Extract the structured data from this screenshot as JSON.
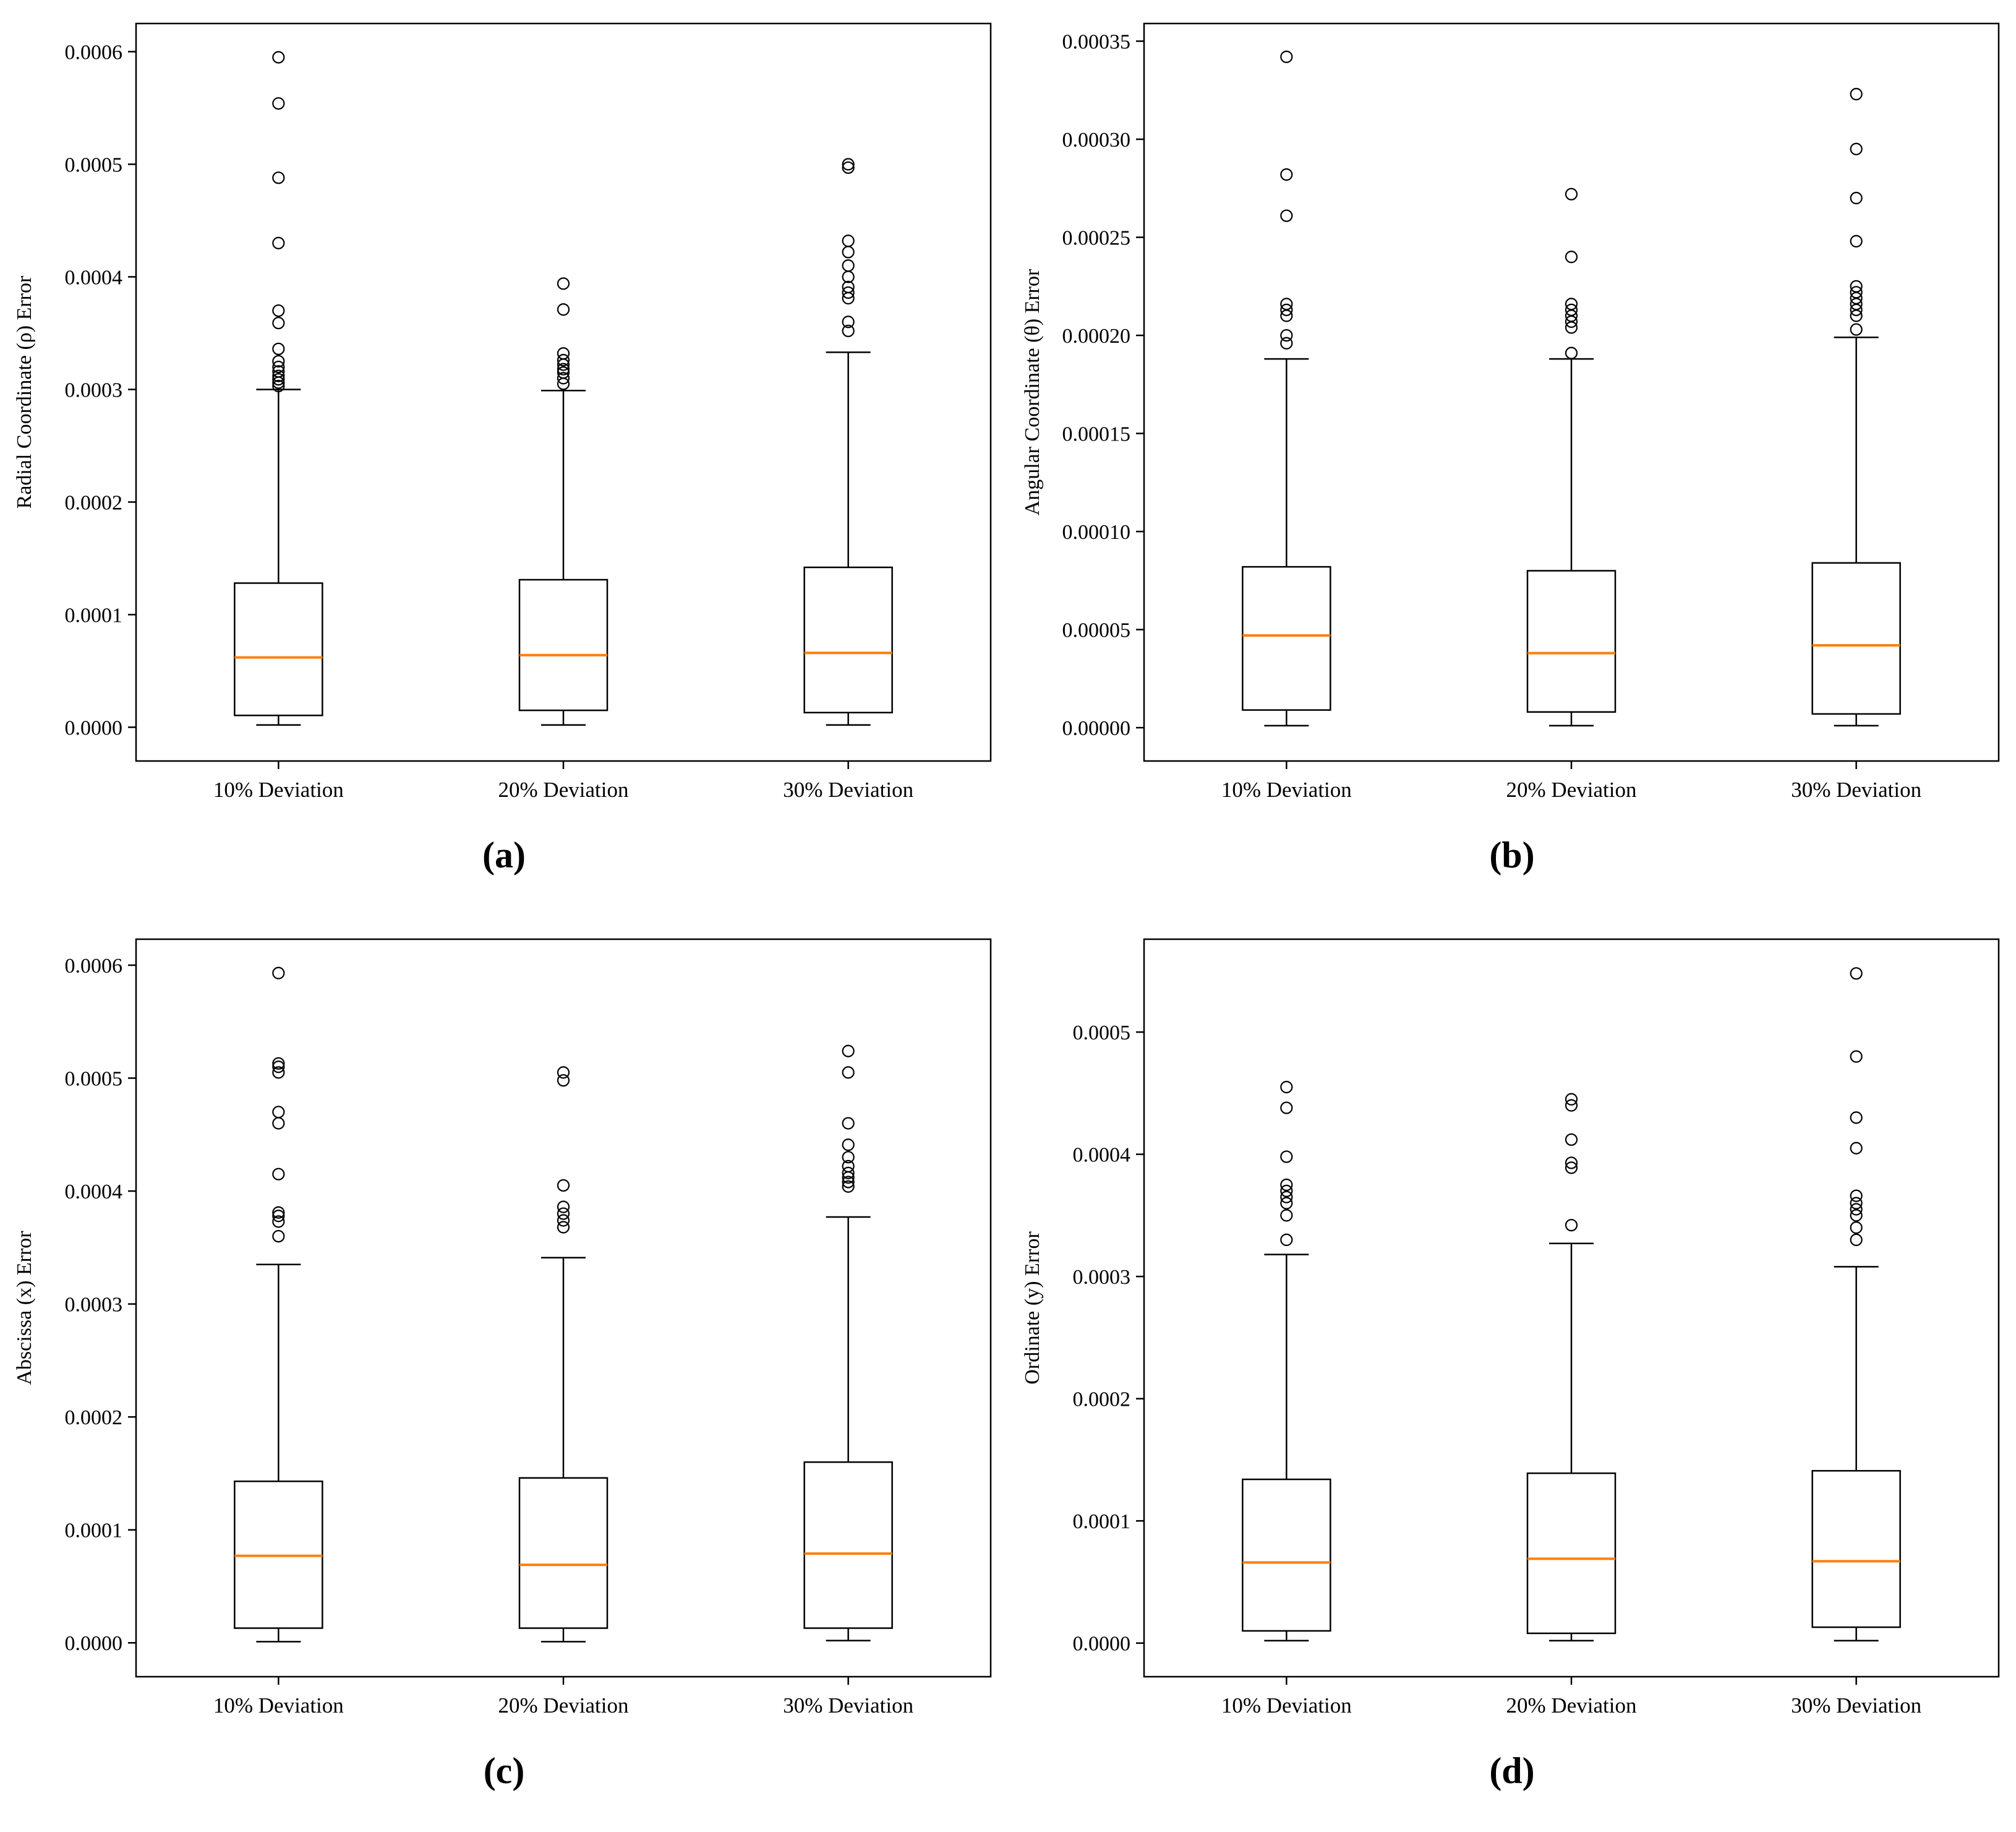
{
  "figure": {
    "background": "#ffffff"
  },
  "colors": {
    "line": "#000000",
    "median": "#ff7f0e",
    "box_fill": "#ffffff",
    "background": "#ffffff"
  },
  "chart_data": [
    {
      "type": "boxplot",
      "panel_label": "(a)",
      "ylabel": "Radial Coordinate (ρ) Error",
      "categories": [
        "10% Deviation",
        "20% Deviation",
        "30% Deviation"
      ],
      "ylim": [
        -3e-05,
        0.000625
      ],
      "yticks": [
        {
          "value": 0.0,
          "label": "0.0000"
        },
        {
          "value": 0.0001,
          "label": "0.0001"
        },
        {
          "value": 0.0002,
          "label": "0.0002"
        },
        {
          "value": 0.0003,
          "label": "0.0003"
        },
        {
          "value": 0.0004,
          "label": "0.0004"
        },
        {
          "value": 0.0005,
          "label": "0.0005"
        },
        {
          "value": 0.0006,
          "label": "0.0006"
        }
      ],
      "boxes": [
        {
          "whislo": 2e-06,
          "q1": 1.05e-05,
          "median": 6.2e-05,
          "q3": 0.000128,
          "whishi": 0.0003,
          "outliers": [
            0.000303,
            0.000306,
            0.000309,
            0.000312,
            0.000316,
            0.00032,
            0.000325,
            0.000336,
            0.000359,
            0.00037,
            0.00043,
            0.000488,
            0.000554,
            0.000595
          ]
        },
        {
          "whislo": 2e-06,
          "q1": 1.5e-05,
          "median": 6.4e-05,
          "q3": 0.000131,
          "whishi": 0.000299,
          "outliers": [
            0.000305,
            0.00031,
            0.000315,
            0.000318,
            0.000322,
            0.000326,
            0.000332,
            0.000371,
            0.000394
          ]
        },
        {
          "whislo": 2e-06,
          "q1": 1.3e-05,
          "median": 6.6e-05,
          "q3": 0.000142,
          "whishi": 0.000333,
          "outliers": [
            0.000352,
            0.00036,
            0.000381,
            0.000386,
            0.000391,
            0.0004,
            0.00041,
            0.000422,
            0.000432,
            0.000497,
            0.0005
          ]
        }
      ]
    },
    {
      "type": "boxplot",
      "panel_label": "(b)",
      "ylabel": "Angular Coordinate (θ) Error",
      "categories": [
        "10% Deviation",
        "20% Deviation",
        "30% Deviation"
      ],
      "ylim": [
        -1.7e-05,
        0.000359
      ],
      "yticks": [
        {
          "value": 0.0,
          "label": "0.00000"
        },
        {
          "value": 5e-05,
          "label": "0.00005"
        },
        {
          "value": 0.0001,
          "label": "0.00010"
        },
        {
          "value": 0.00015,
          "label": "0.00015"
        },
        {
          "value": 0.0002,
          "label": "0.00020"
        },
        {
          "value": 0.00025,
          "label": "0.00025"
        },
        {
          "value": 0.0003,
          "label": "0.00030"
        },
        {
          "value": 0.00035,
          "label": "0.00035"
        }
      ],
      "boxes": [
        {
          "whislo": 1e-06,
          "q1": 9e-06,
          "median": 4.7e-05,
          "q3": 8.2e-05,
          "whishi": 0.000188,
          "outliers": [
            0.000196,
            0.0002,
            0.00021,
            0.000213,
            0.000216,
            0.000261,
            0.000282,
            0.000342
          ]
        },
        {
          "whislo": 1e-06,
          "q1": 8e-06,
          "median": 3.8e-05,
          "q3": 8e-05,
          "whishi": 0.000188,
          "outliers": [
            0.000191,
            0.000204,
            0.000207,
            0.00021,
            0.000213,
            0.000216,
            0.00024,
            0.000272
          ]
        },
        {
          "whislo": 1e-06,
          "q1": 7e-06,
          "median": 4.2e-05,
          "q3": 8.4e-05,
          "whishi": 0.000199,
          "outliers": [
            0.000203,
            0.00021,
            0.000213,
            0.000216,
            0.000219,
            0.000222,
            0.000225,
            0.000248,
            0.00027,
            0.000295,
            0.000323
          ]
        }
      ]
    },
    {
      "type": "boxplot",
      "panel_label": "(c)",
      "ylabel": "Abscissa (x) Error",
      "categories": [
        "10% Deviation",
        "20% Deviation",
        "30% Deviation"
      ],
      "ylim": [
        -3e-05,
        0.000623
      ],
      "yticks": [
        {
          "value": 0.0,
          "label": "0.0000"
        },
        {
          "value": 0.0001,
          "label": "0.0001"
        },
        {
          "value": 0.0002,
          "label": "0.0002"
        },
        {
          "value": 0.0003,
          "label": "0.0003"
        },
        {
          "value": 0.0004,
          "label": "0.0004"
        },
        {
          "value": 0.0005,
          "label": "0.0005"
        },
        {
          "value": 0.0006,
          "label": "0.0006"
        }
      ],
      "boxes": [
        {
          "whislo": 1e-06,
          "q1": 1.3e-05,
          "median": 7.7e-05,
          "q3": 0.000143,
          "whishi": 0.000335,
          "outliers": [
            0.00036,
            0.000373,
            0.000378,
            0.000381,
            0.000415,
            0.00046,
            0.00047,
            0.000505,
            0.00051,
            0.000513,
            0.000593
          ]
        },
        {
          "whislo": 1e-06,
          "q1": 1.3e-05,
          "median": 6.9e-05,
          "q3": 0.000146,
          "whishi": 0.000341,
          "outliers": [
            0.000368,
            0.000374,
            0.00038,
            0.000386,
            0.000405,
            0.000498,
            0.000505
          ]
        },
        {
          "whislo": 2e-06,
          "q1": 1.3e-05,
          "median": 7.9e-05,
          "q3": 0.00016,
          "whishi": 0.000377,
          "outliers": [
            0.000404,
            0.000408,
            0.000412,
            0.000416,
            0.000422,
            0.00043,
            0.000441,
            0.00046,
            0.000505,
            0.000524
          ]
        }
      ]
    },
    {
      "type": "boxplot",
      "panel_label": "(d)",
      "ylabel": "Ordinate (y) Error",
      "categories": [
        "10% Deviation",
        "20% Deviation",
        "30% Deviation"
      ],
      "ylim": [
        -2.75e-05,
        0.000576
      ],
      "yticks": [
        {
          "value": 0.0,
          "label": "0.0000"
        },
        {
          "value": 0.0001,
          "label": "0.0001"
        },
        {
          "value": 0.0002,
          "label": "0.0002"
        },
        {
          "value": 0.0003,
          "label": "0.0003"
        },
        {
          "value": 0.0004,
          "label": "0.0004"
        },
        {
          "value": 0.0005,
          "label": "0.0005"
        }
      ],
      "boxes": [
        {
          "whislo": 2e-06,
          "q1": 1e-05,
          "median": 6.6e-05,
          "q3": 0.000134,
          "whishi": 0.000318,
          "outliers": [
            0.00033,
            0.00035,
            0.00036,
            0.000365,
            0.00037,
            0.000375,
            0.000398,
            0.000438,
            0.000455
          ]
        },
        {
          "whislo": 2e-06,
          "q1": 8e-06,
          "median": 6.9e-05,
          "q3": 0.000139,
          "whishi": 0.000327,
          "outliers": [
            0.000342,
            0.000389,
            0.000393,
            0.000412,
            0.00044,
            0.000445
          ]
        },
        {
          "whislo": 2e-06,
          "q1": 1.3e-05,
          "median": 6.7e-05,
          "q3": 0.000141,
          "whishi": 0.000308,
          "outliers": [
            0.00033,
            0.00034,
            0.00035,
            0.000355,
            0.00036,
            0.000366,
            0.000405,
            0.00043,
            0.00048,
            0.000548
          ]
        }
      ]
    }
  ]
}
